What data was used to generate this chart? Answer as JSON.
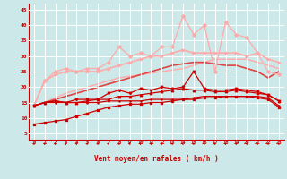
{
  "x": [
    0,
    1,
    2,
    3,
    4,
    5,
    6,
    7,
    8,
    9,
    10,
    11,
    12,
    13,
    14,
    15,
    16,
    17,
    18,
    19,
    20,
    21,
    22,
    23
  ],
  "bg_color": "#cce8e8",
  "grid_color": "#ffffff",
  "xlabel": "Vent moyen/en rafales ( km/h )",
  "xlabel_color": "#cc0000",
  "tick_color": "#cc0000",
  "ylim": [
    3,
    47
  ],
  "yticks": [
    5,
    10,
    15,
    20,
    25,
    30,
    35,
    40,
    45
  ],
  "line_bottom": {
    "y": [
      8,
      8.5,
      9,
      9.5,
      10.5,
      11.5,
      12.5,
      13.5,
      14,
      14.5,
      14.5,
      15,
      15,
      15.5,
      16,
      16,
      16.5,
      16.5,
      17,
      17,
      17,
      16.5,
      16,
      13.5
    ],
    "color": "#cc0000",
    "lw": 0.9,
    "marker": "s",
    "ms": 1.8
  },
  "line_flat1": {
    "y": [
      14,
      15,
      15,
      15,
      15,
      15,
      15,
      15.5,
      15.5,
      15.5,
      15.5,
      16,
      16,
      16,
      16,
      16.5,
      17,
      17,
      17,
      17,
      17,
      17,
      16.5,
      14
    ],
    "color": "#cc0000",
    "lw": 0.9,
    "marker": "+",
    "ms": 2.0
  },
  "line_flat2": {
    "y": [
      14,
      15,
      15.5,
      15,
      15,
      15.5,
      16,
      16,
      17,
      17,
      17.5,
      18,
      18.5,
      19,
      19.5,
      19,
      19,
      18.5,
      18.5,
      19,
      18.5,
      18,
      17.5,
      15.5
    ],
    "color": "#cc0000",
    "lw": 0.9,
    "marker": "^",
    "ms": 1.8
  },
  "line_mid": {
    "y": [
      14,
      15,
      15.5,
      15,
      16,
      16,
      16,
      18,
      19,
      18,
      19.5,
      19,
      20,
      19.5,
      20,
      25,
      19.5,
      19,
      19,
      19.5,
      19,
      18.5,
      17.5,
      15.5
    ],
    "color": "#cc0000",
    "lw": 0.9,
    "marker": "v",
    "ms": 1.8
  },
  "line_smooth_dark": {
    "y": [
      14,
      15,
      16,
      17,
      18,
      19,
      20,
      21,
      22,
      23,
      24,
      25,
      26,
      27,
      27.5,
      28,
      28,
      27.5,
      27,
      27,
      26,
      25,
      23,
      25
    ],
    "color": "#dd4444",
    "lw": 1.2,
    "marker": null,
    "ms": 0
  },
  "line_light_smooth": {
    "y": [
      14,
      22,
      24,
      25,
      25,
      25,
      25,
      26,
      27,
      28,
      29,
      30,
      30,
      31,
      32,
      31,
      31,
      31,
      31,
      31,
      30,
      31,
      29,
      28
    ],
    "color": "#ffaaaa",
    "lw": 1.2,
    "marker": ">",
    "ms": 2.0
  },
  "line_light_spiky": {
    "y": [
      14,
      22,
      25,
      26,
      25,
      26,
      26,
      28,
      33,
      30,
      31,
      30,
      33,
      33,
      43,
      37,
      40,
      25,
      41,
      37,
      36,
      31,
      25,
      24
    ],
    "color": "#ffaaaa",
    "lw": 0.9,
    "marker": "D",
    "ms": 1.8
  },
  "line_light_rising": {
    "y": [
      14,
      15,
      16.5,
      18,
      19,
      20,
      21,
      22,
      23,
      23.5,
      24,
      24.5,
      25,
      25.5,
      26,
      27,
      28,
      29,
      29,
      29,
      29,
      28,
      27,
      26
    ],
    "color": "#ffaaaa",
    "lw": 1.0,
    "marker": null,
    "ms": 0
  },
  "arrow_color": "#cc0000",
  "spine_color": "#cc0000"
}
